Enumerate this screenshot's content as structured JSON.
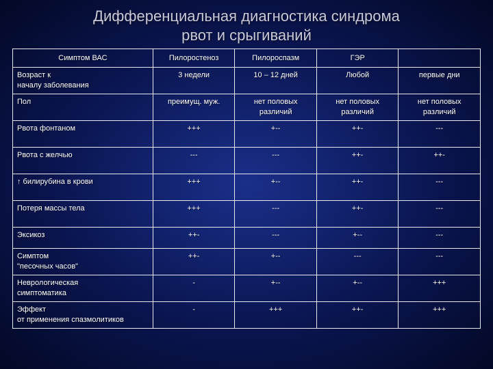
{
  "title_line1": "Дифференциальная диагностика синдрома",
  "title_line2": "рвот и срыгиваний",
  "colors": {
    "text": "#ffffff",
    "title_text": "#c8c8d8",
    "border": "#e8e8f0",
    "bg_center": "#1a2f8a",
    "bg_mid": "#0a1550",
    "bg_edge": "#030825"
  },
  "table": {
    "columns": [
      "Симптом ВАС",
      "Пилоростеноз",
      "Пилороспазм",
      "ГЭР",
      ""
    ],
    "column_align": [
      "left",
      "center",
      "center",
      "center",
      "center"
    ],
    "font_size_pt": 8,
    "rows": [
      {
        "label_lines": [
          "Возраст к",
          "началу заболевания"
        ],
        "cells": [
          "3 недели",
          "10 – 12 дней",
          "Любой",
          "первые дни"
        ],
        "tall": true
      },
      {
        "label_lines": [
          "Пол"
        ],
        "cells": [
          "преимущ. муж.",
          "нет половых различий",
          "нет половых различий",
          "нет половых различий"
        ],
        "tall": true
      },
      {
        "label_lines": [
          "Рвота фонтаном"
        ],
        "cells": [
          "+++",
          "+--",
          "++-",
          "---"
        ],
        "tall": true
      },
      {
        "label_lines": [
          "Рвота с желчью"
        ],
        "cells": [
          "---",
          "---",
          "++-",
          "++-"
        ],
        "tall": true
      },
      {
        "label_lines": [
          "↑ билирубина в крови"
        ],
        "cells": [
          "+++",
          "+--",
          "++-",
          "---"
        ],
        "tall": true
      },
      {
        "label_lines": [
          "Потеря массы тела"
        ],
        "cells": [
          "+++",
          "---",
          "++-",
          "---"
        ],
        "tall": true
      },
      {
        "label_lines": [
          "Эксикоз"
        ],
        "cells": [
          "++-",
          "---",
          "+--",
          "---"
        ],
        "short": true
      },
      {
        "label_lines": [
          "Симптом",
          "\"песочных часов\""
        ],
        "cells": [
          "++-",
          "+--",
          "---",
          "---"
        ],
        "tall": true
      },
      {
        "label_lines": [
          "Неврологическая",
          "симптоматика"
        ],
        "cells": [
          "-",
          "+--",
          "+--",
          "+++"
        ],
        "tall": true
      },
      {
        "label_lines": [
          "Эффект",
          "от применения спазмолитиков"
        ],
        "cells": [
          "-",
          "+++",
          "++-",
          "+++"
        ],
        "tall": true
      }
    ]
  }
}
